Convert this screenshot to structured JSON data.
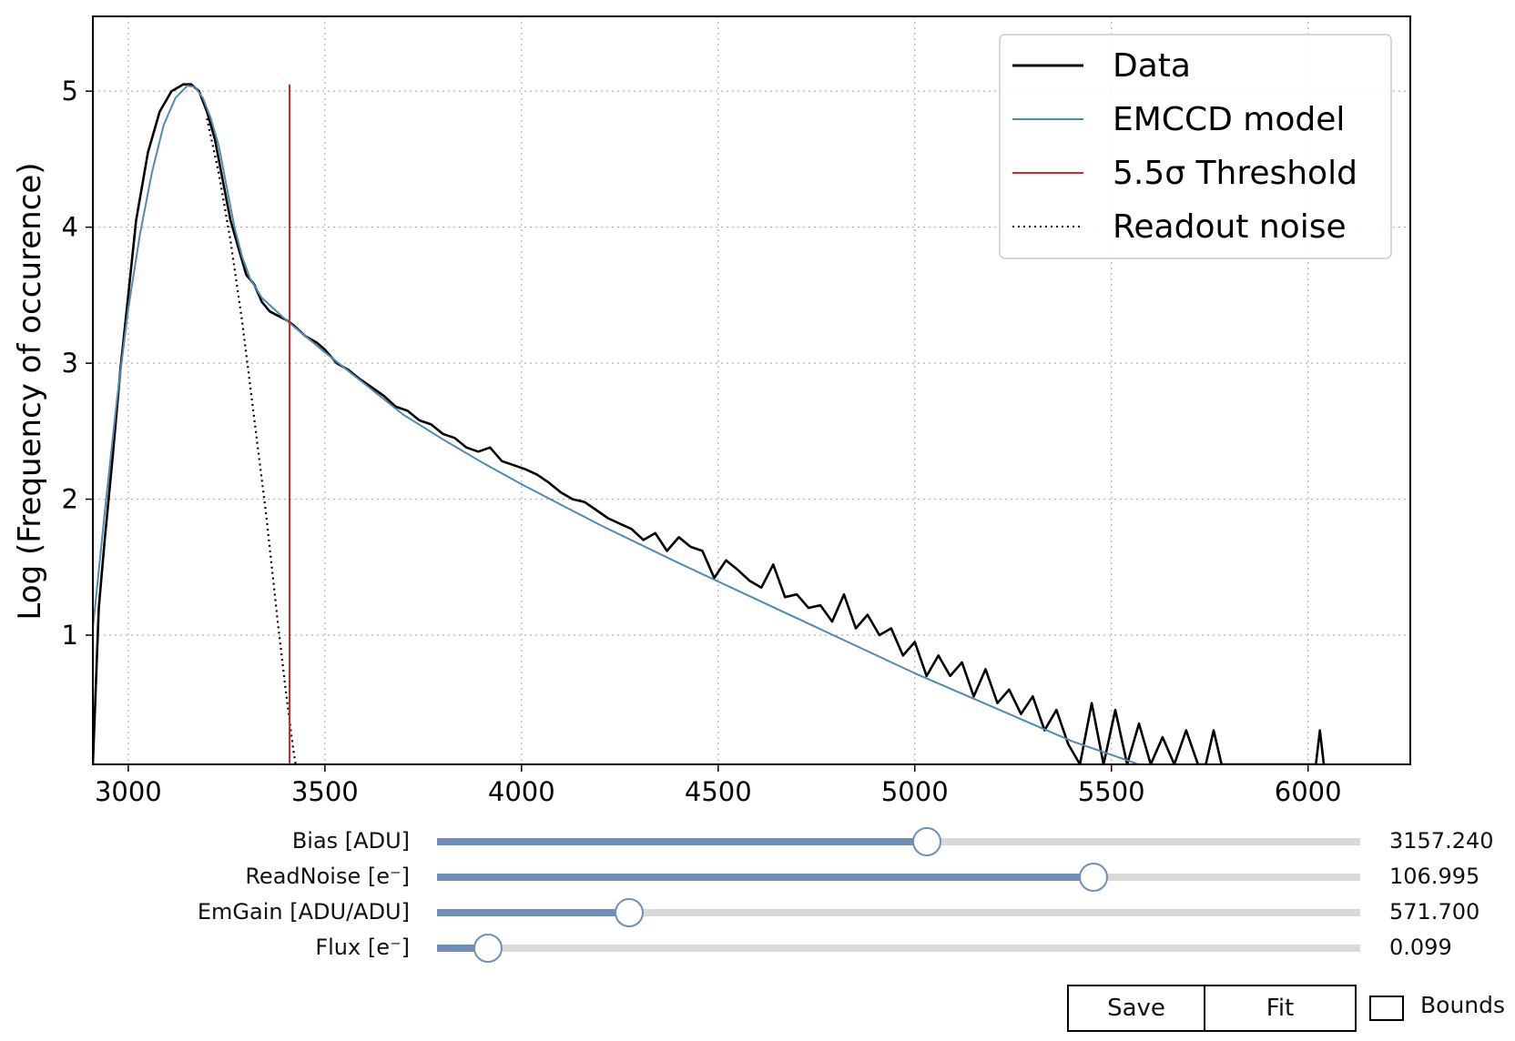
{
  "chart_data": {
    "type": "line",
    "ylabel": "Log (Frequency of occurence)",
    "xlim": [
      2910,
      6260
    ],
    "ylim": [
      0.05,
      5.55
    ],
    "xticks": [
      3000,
      3500,
      4000,
      4500,
      5000,
      5500,
      6000
    ],
    "yticks": [
      1,
      2,
      3,
      4,
      5
    ],
    "grid": true,
    "legend_position": "top-right",
    "series": [
      {
        "name": "Data",
        "color": "#000000",
        "style": "solid",
        "x": [
          2910,
          2925,
          2940,
          2960,
          2980,
          3000,
          3020,
          3050,
          3080,
          3110,
          3140,
          3160,
          3180,
          3200,
          3220,
          3240,
          3260,
          3280,
          3300,
          3320,
          3340,
          3360,
          3380,
          3400,
          3420,
          3450,
          3480,
          3500,
          3530,
          3560,
          3590,
          3620,
          3650,
          3680,
          3710,
          3740,
          3770,
          3800,
          3830,
          3860,
          3890,
          3920,
          3950,
          3980,
          4010,
          4040,
          4070,
          4100,
          4130,
          4160,
          4190,
          4220,
          4250,
          4280,
          4310,
          4340,
          4370,
          4400,
          4430,
          4460,
          4490,
          4520,
          4550,
          4580,
          4610,
          4640,
          4670,
          4700,
          4730,
          4760,
          4790,
          4820,
          4850,
          4880,
          4910,
          4940,
          4970,
          5000,
          5030,
          5060,
          5090,
          5120,
          5150,
          5180,
          5210,
          5240,
          5270,
          5300,
          5330,
          5360,
          5390,
          5420,
          5450,
          5480,
          5510,
          5540,
          5570,
          5600,
          5630,
          5660,
          5690,
          5720,
          5740,
          5760,
          5780,
          6020,
          6030,
          6040
        ],
        "y": [
          0.05,
          1.2,
          1.7,
          2.3,
          2.95,
          3.5,
          4.05,
          4.55,
          4.85,
          5.0,
          5.05,
          5.05,
          5.0,
          4.85,
          4.65,
          4.35,
          4.05,
          3.85,
          3.65,
          3.58,
          3.45,
          3.38,
          3.35,
          3.32,
          3.28,
          3.2,
          3.15,
          3.1,
          3.0,
          2.95,
          2.88,
          2.82,
          2.76,
          2.68,
          2.65,
          2.58,
          2.55,
          2.48,
          2.45,
          2.38,
          2.35,
          2.38,
          2.28,
          2.25,
          2.22,
          2.18,
          2.12,
          2.05,
          2.0,
          1.98,
          1.92,
          1.86,
          1.82,
          1.78,
          1.7,
          1.75,
          1.62,
          1.72,
          1.65,
          1.62,
          1.42,
          1.55,
          1.48,
          1.4,
          1.35,
          1.52,
          1.28,
          1.3,
          1.2,
          1.22,
          1.1,
          1.3,
          1.05,
          1.15,
          1.0,
          1.05,
          0.85,
          0.95,
          0.7,
          0.85,
          0.7,
          0.8,
          0.55,
          0.75,
          0.5,
          0.6,
          0.42,
          0.55,
          0.3,
          0.45,
          0.2,
          0.05,
          0.5,
          0.05,
          0.45,
          0.05,
          0.35,
          0.05,
          0.25,
          0.05,
          0.3,
          0.05,
          0.05,
          0.3,
          0.05,
          0.05,
          0.3,
          0.05
        ]
      },
      {
        "name": "EMCCD model",
        "color": "#4f8ab2",
        "style": "solid",
        "x": [
          2910,
          2940,
          2970,
          3000,
          3030,
          3060,
          3090,
          3120,
          3150,
          3170,
          3190,
          3210,
          3230,
          3250,
          3270,
          3290,
          3310,
          3340,
          3370,
          3400,
          3450,
          3500,
          3600,
          3700,
          3800,
          3900,
          4000,
          4200,
          4400,
          4600,
          4800,
          5000,
          5200,
          5400,
          5600,
          5740
        ],
        "y": [
          1.05,
          1.9,
          2.7,
          3.4,
          3.95,
          4.4,
          4.75,
          4.95,
          5.04,
          5.03,
          4.95,
          4.8,
          4.6,
          4.3,
          4.0,
          3.78,
          3.62,
          3.48,
          3.4,
          3.32,
          3.2,
          3.08,
          2.85,
          2.62,
          2.44,
          2.27,
          2.11,
          1.81,
          1.53,
          1.26,
          0.99,
          0.72,
          0.47,
          0.22,
          0.02,
          -0.1
        ]
      },
      {
        "name": "5.5σ Threshold",
        "color": "#d62728",
        "style": "solid",
        "x": [
          3410,
          3410
        ],
        "y": [
          0.05,
          5.05
        ]
      },
      {
        "name": "Readout noise",
        "color": "#000000",
        "style": "dotted",
        "x": [
          3200,
          3230,
          3260,
          3290,
          3320,
          3350,
          3380,
          3400,
          3420,
          3440
        ],
        "y": [
          4.8,
          4.4,
          3.9,
          3.3,
          2.6,
          1.9,
          1.1,
          0.6,
          0.15,
          -0.2
        ]
      }
    ]
  },
  "sliders": [
    {
      "label": "Bias [ADU]",
      "value": "3157.240",
      "fraction": 0.531
    },
    {
      "label": "ReadNoise [e⁻]",
      "value": "106.995",
      "fraction": 0.711
    },
    {
      "label": "EmGain [ADU/ADU]",
      "value": "571.700",
      "fraction": 0.208
    },
    {
      "label": "Flux [e⁻]",
      "value": "0.099",
      "fraction": 0.055
    }
  ],
  "buttons": {
    "save": "Save",
    "fit": "Fit"
  },
  "checkbox": {
    "label": "Bounds",
    "checked": false
  }
}
